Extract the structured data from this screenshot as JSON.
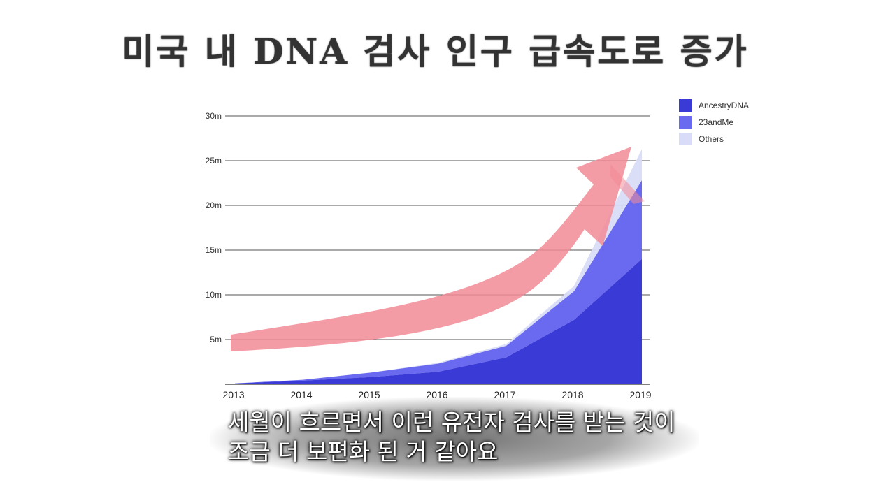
{
  "title": "미국 내 DNA 검사 인구 급속도로 증가",
  "subtitle": {
    "line1": "세월이 흐르면서 이런 유전자 검사를 받는 것이",
    "line2": "조금 더 보편화 된 거 같아요"
  },
  "colors": {
    "ancestry": "#3a3ad6",
    "twentythree": "#6a6af0",
    "others": "#d9dcf7",
    "arrow": "#f28b96",
    "gridline": "#555555"
  },
  "chart_data": {
    "type": "area",
    "stacked": true,
    "x": [
      "2013",
      "2014",
      "2015",
      "2016",
      "2017",
      "2018",
      "2019"
    ],
    "y_tick_labels": [
      "5m",
      "10m",
      "15m",
      "20m",
      "25m",
      "30m"
    ],
    "y_ticks": [
      5,
      10,
      15,
      20,
      25,
      30
    ],
    "ylim": [
      0,
      30
    ],
    "y_unit": "m",
    "series": [
      {
        "name": "AncestryDNA",
        "values": [
          0.1,
          0.4,
          0.8,
          1.4,
          3.0,
          7.2,
          14.0
        ]
      },
      {
        "name": "23andMe",
        "values": [
          0.0,
          0.1,
          0.5,
          0.9,
          1.3,
          3.2,
          8.8
        ]
      },
      {
        "name": "Others",
        "values": [
          0.0,
          0.0,
          0.0,
          0.1,
          0.2,
          0.6,
          3.5
        ]
      }
    ],
    "legend_position": "top-right",
    "annotation": "upward-trend-arrow",
    "grid": true
  }
}
